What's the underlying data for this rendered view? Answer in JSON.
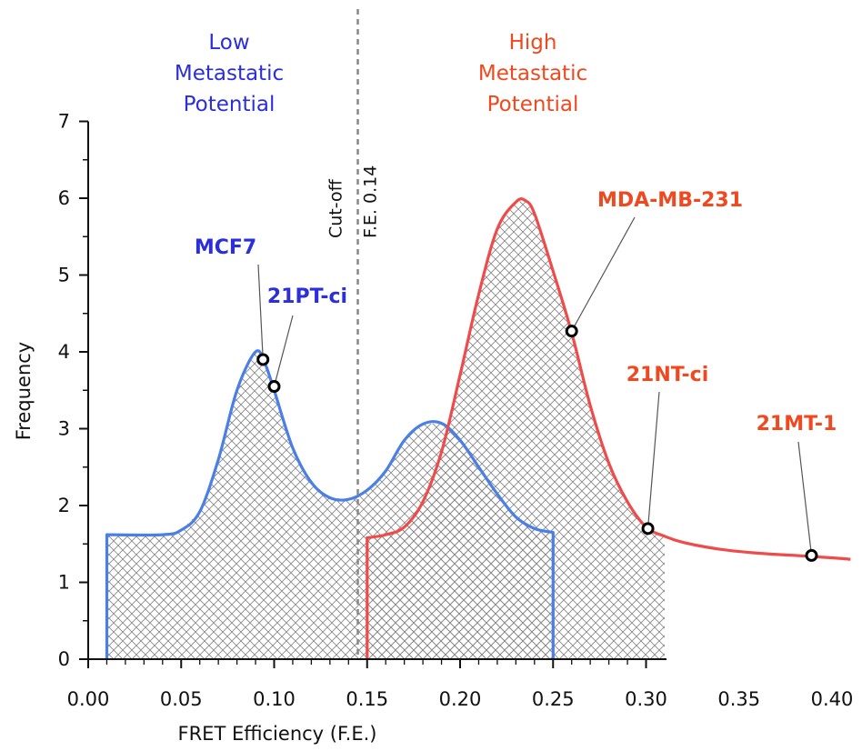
{
  "chart_data": {
    "type": "line",
    "xlabel": "FRET Efficiency (F.E.)",
    "ylabel": "Frequency",
    "xlim": [
      0.0,
      0.4
    ],
    "ylim": [
      0,
      7
    ],
    "x_ticks": [
      "0.00",
      "0.05",
      "0.10",
      "0.15",
      "0.20",
      "0.25",
      "0.30",
      "0.35",
      "0.40"
    ],
    "y_ticks": [
      "0",
      "1",
      "2",
      "3",
      "4",
      "5",
      "6",
      "7"
    ],
    "colors": {
      "low": "#4a7fe6",
      "high": "#ef4b4b",
      "low_text": "#2b2fd9",
      "high_text": "#f0481f",
      "cutoff": "#888888"
    },
    "regions": [
      {
        "lines": [
          "Low",
          "Metastatic",
          "Potential"
        ],
        "group": "low"
      },
      {
        "lines": [
          "High",
          "Metastatic",
          "Potential"
        ],
        "group": "high"
      }
    ],
    "cutoff": {
      "x": 0.145,
      "lines": [
        "Cut-off",
        "F.E. 0.14"
      ]
    },
    "series": [
      {
        "group": "low",
        "points": [
          [
            0.01,
            0
          ],
          [
            0.01,
            1.62
          ],
          [
            0.04,
            1.62
          ],
          [
            0.05,
            1.68
          ],
          [
            0.06,
            1.92
          ],
          [
            0.07,
            2.6
          ],
          [
            0.08,
            3.5
          ],
          [
            0.09,
            4.0
          ],
          [
            0.095,
            3.85
          ],
          [
            0.1,
            3.5
          ],
          [
            0.11,
            2.75
          ],
          [
            0.12,
            2.3
          ],
          [
            0.13,
            2.1
          ],
          [
            0.14,
            2.08
          ],
          [
            0.15,
            2.2
          ],
          [
            0.16,
            2.45
          ],
          [
            0.17,
            2.85
          ],
          [
            0.18,
            3.06
          ],
          [
            0.19,
            3.07
          ],
          [
            0.2,
            2.85
          ],
          [
            0.21,
            2.5
          ],
          [
            0.22,
            2.15
          ],
          [
            0.23,
            1.85
          ],
          [
            0.24,
            1.7
          ],
          [
            0.25,
            1.65
          ],
          [
            0.25,
            0
          ]
        ]
      },
      {
        "group": "high",
        "points": [
          [
            0.15,
            0
          ],
          [
            0.15,
            1.58
          ],
          [
            0.16,
            1.62
          ],
          [
            0.17,
            1.72
          ],
          [
            0.18,
            2.05
          ],
          [
            0.19,
            2.7
          ],
          [
            0.2,
            3.7
          ],
          [
            0.21,
            4.75
          ],
          [
            0.22,
            5.6
          ],
          [
            0.23,
            5.95
          ],
          [
            0.235,
            5.97
          ],
          [
            0.24,
            5.8
          ],
          [
            0.25,
            5.05
          ],
          [
            0.26,
            4.25
          ],
          [
            0.27,
            3.3
          ],
          [
            0.28,
            2.55
          ],
          [
            0.29,
            2.05
          ],
          [
            0.3,
            1.72
          ],
          [
            0.31,
            1.6
          ],
          [
            0.32,
            1.52
          ],
          [
            0.34,
            1.43
          ],
          [
            0.36,
            1.38
          ],
          [
            0.38,
            1.35
          ],
          [
            0.4,
            1.32
          ],
          [
            0.41,
            1.3
          ]
        ]
      }
    ],
    "points": [
      {
        "label": "MCF7",
        "x": 0.094,
        "y": 3.9,
        "group": "low"
      },
      {
        "label": "21PT-ci",
        "x": 0.1,
        "y": 3.55,
        "group": "low"
      },
      {
        "label": "MDA-MB-231",
        "x": 0.26,
        "y": 4.27,
        "group": "high"
      },
      {
        "label": "21NT-ci",
        "x": 0.301,
        "y": 1.7,
        "group": "high"
      },
      {
        "label": "21MT-1",
        "x": 0.389,
        "y": 1.35,
        "group": "high"
      }
    ]
  }
}
